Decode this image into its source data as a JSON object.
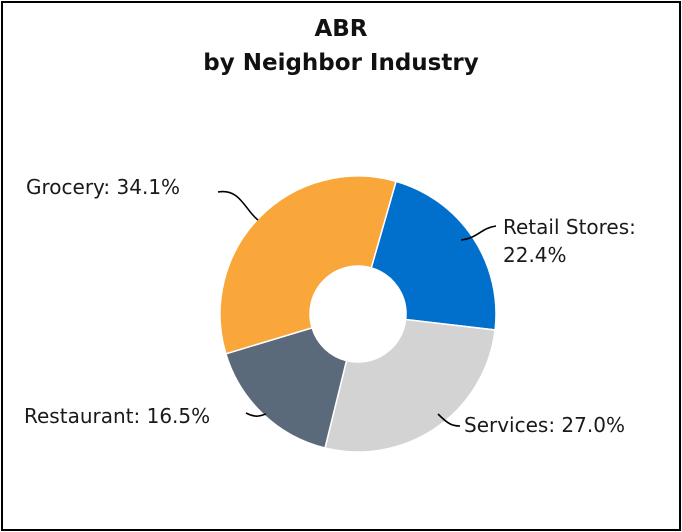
{
  "chart_data": {
    "type": "pie",
    "title": "ABR",
    "subtitle": "by Neighbor Industry",
    "categories": [
      "Retail Stores",
      "Services",
      "Restaurant",
      "Grocery"
    ],
    "values": [
      22.4,
      27.0,
      16.5,
      34.1
    ],
    "unit": "%",
    "colors": [
      "#0070CC",
      "#D3D3D3",
      "#5B6A7B",
      "#F9A73A"
    ],
    "data_labels": [
      [
        "Retail Stores:",
        "22.4%"
      ],
      [
        "Services: 27.0%"
      ],
      [
        "Restaurant: 16.5%"
      ],
      [
        "Grocery: 34.1%"
      ]
    ],
    "donut": true
  }
}
